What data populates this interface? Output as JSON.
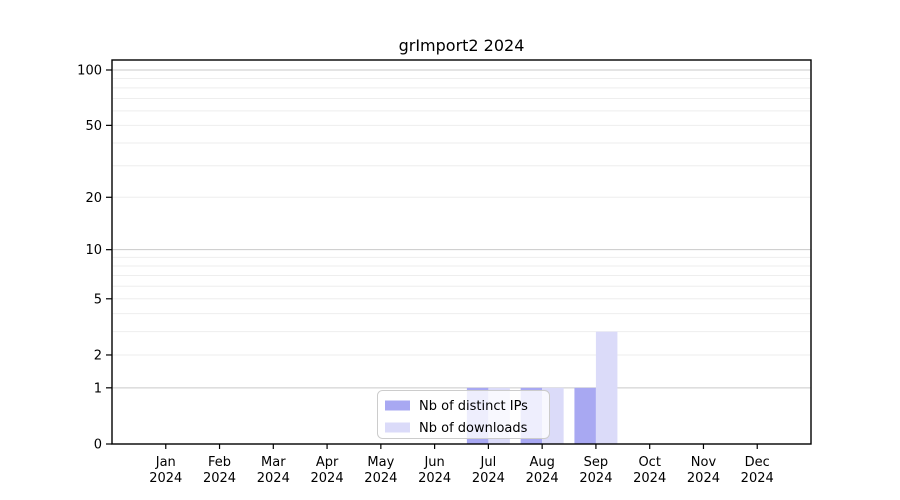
{
  "chart_data": {
    "type": "bar",
    "title": "grImport2 2024",
    "categories": [
      "Jan",
      "Feb",
      "Mar",
      "Apr",
      "May",
      "Jun",
      "Jul",
      "Aug",
      "Sep",
      "Oct",
      "Nov",
      "Dec"
    ],
    "x_year_label": "2024",
    "series": [
      {
        "name": "Nb of distinct IPs",
        "color": "#a8a8f2",
        "values": [
          0,
          0,
          0,
          0,
          0,
          0,
          1,
          1,
          1,
          0,
          0,
          0
        ]
      },
      {
        "name": "Nb of downloads",
        "color": "#dbdbf9",
        "values": [
          0,
          0,
          0,
          0,
          0,
          0,
          1,
          1,
          3,
          0,
          0,
          0
        ]
      }
    ],
    "y_ticks": [
      0,
      1,
      2,
      5,
      10,
      20,
      50,
      100
    ],
    "grid_minor_values": [
      2,
      3,
      4,
      5,
      6,
      7,
      8,
      9,
      20,
      30,
      40,
      50,
      60,
      70,
      80,
      90
    ],
    "grid_major_values": [
      1,
      10,
      100
    ],
    "scale": "log1p",
    "ylim": [
      0,
      113
    ],
    "legend_position": "inside-bottom-center",
    "colors": {
      "axis": "#000000",
      "grid_major": "#c9c9c9",
      "grid_minor": "#eeeeee",
      "background": "#ffffff",
      "legend_border": "#cccccc",
      "legend_bg": "rgba(255,255,255,0.8)",
      "text": "#000000"
    }
  }
}
